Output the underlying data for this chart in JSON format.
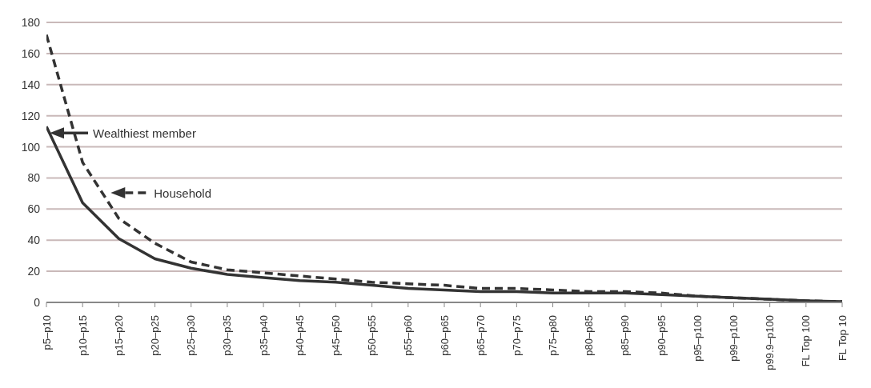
{
  "chart_data": {
    "type": "line",
    "categories": [
      "p5–p10",
      "p10–p15",
      "p15–p20",
      "p20–p25",
      "p25–p30",
      "p30–p35",
      "p35–p40",
      "p40–p45",
      "p45–p50",
      "p50–p55",
      "p55–p60",
      "p60–p65",
      "p65–p70",
      "p70–p75",
      "p75–p80",
      "p80–p85",
      "p85–p90",
      "p90–p95",
      "p95–p100",
      "p99–p100",
      "p99.9–p100",
      "FL Top 100",
      "FL Top 10"
    ],
    "series": [
      {
        "name": "Wealthiest member",
        "color": "#333333",
        "line_style": "solid",
        "values": [
          113,
          64,
          41,
          28,
          22,
          18,
          16,
          14,
          13,
          11,
          9,
          8,
          7,
          7,
          6,
          6,
          6,
          5,
          4,
          3,
          2,
          1,
          0.5
        ]
      },
      {
        "name": "Household",
        "color": "#333333",
        "line_style": "dashed",
        "values": [
          172,
          90,
          54,
          38,
          26,
          21,
          19,
          17,
          15,
          13,
          12,
          11,
          9,
          9,
          8,
          7,
          7,
          6,
          4,
          3,
          2,
          1,
          0.5
        ]
      }
    ],
    "ylim": [
      0,
      180
    ],
    "yticks": [
      0,
      20,
      40,
      60,
      80,
      100,
      120,
      140,
      160,
      180
    ],
    "grid": "y",
    "marker": "none",
    "legend": "left"
  }
}
